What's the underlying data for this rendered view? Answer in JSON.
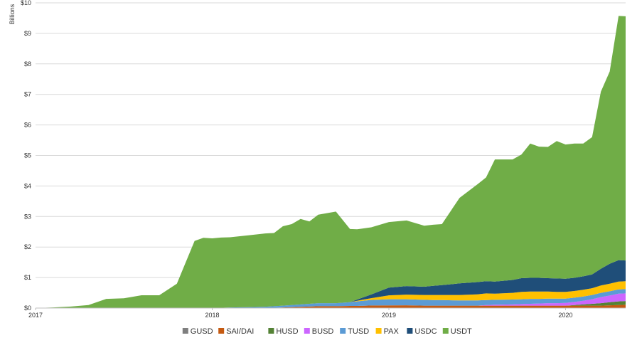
{
  "chart_data": {
    "type": "area",
    "stacked": true,
    "ylabel": "Billions",
    "ylim": [
      0,
      10
    ],
    "y_ticks": [
      "$0",
      "$1",
      "$2",
      "$3",
      "$4",
      "$5",
      "$6",
      "$7",
      "$8",
      "$9",
      "$10"
    ],
    "x_ticks": [
      "2017",
      "2018",
      "2019",
      "2020"
    ],
    "grid": "horizontal",
    "legend_position": "bottom",
    "x": [
      2017.0,
      2017.1,
      2017.2,
      2017.3,
      2017.4,
      2017.5,
      2017.6,
      2017.7,
      2017.8,
      2017.9,
      2017.95,
      2018.0,
      2018.05,
      2018.1,
      2018.2,
      2018.3,
      2018.35,
      2018.4,
      2018.45,
      2018.5,
      2018.55,
      2018.6,
      2018.7,
      2018.78,
      2018.82,
      2018.9,
      2019.0,
      2019.1,
      2019.2,
      2019.25,
      2019.3,
      2019.4,
      2019.5,
      2019.55,
      2019.6,
      2019.7,
      2019.75,
      2019.8,
      2019.85,
      2019.9,
      2019.95,
      2020.0,
      2020.05,
      2020.1,
      2020.15,
      2020.2,
      2020.25,
      2020.3,
      2020.34
    ],
    "series": [
      {
        "name": "GUSD",
        "color": "#7f7f7f",
        "values": [
          0,
          0,
          0,
          0,
          0,
          0,
          0,
          0,
          0,
          0,
          0,
          0,
          0,
          0,
          0,
          0,
          0,
          0,
          0,
          0,
          0,
          0,
          0,
          0,
          0,
          0.005,
          0.008,
          0.01,
          0.01,
          0.01,
          0.01,
          0.01,
          0.01,
          0.01,
          0.01,
          0.01,
          0.01,
          0.01,
          0.01,
          0.01,
          0.01,
          0.01,
          0.01,
          0.01,
          0.01,
          0.01,
          0.01,
          0.01,
          0.01
        ]
      },
      {
        "name": "SAI/DAI",
        "color": "#c55a11",
        "values": [
          0,
          0,
          0,
          0,
          0,
          0,
          0,
          0,
          0,
          0,
          0,
          0,
          0,
          0,
          0,
          0.005,
          0.01,
          0.02,
          0.03,
          0.04,
          0.05,
          0.06,
          0.06,
          0.07,
          0.07,
          0.08,
          0.08,
          0.08,
          0.07,
          0.07,
          0.07,
          0.07,
          0.07,
          0.07,
          0.07,
          0.07,
          0.07,
          0.07,
          0.07,
          0.07,
          0.07,
          0.07,
          0.07,
          0.07,
          0.07,
          0.07,
          0.08,
          0.09,
          0.1
        ]
      },
      {
        "name": "HUSD",
        "color": "#548235",
        "values": [
          0,
          0,
          0,
          0,
          0,
          0,
          0,
          0,
          0,
          0,
          0,
          0,
          0,
          0,
          0,
          0,
          0,
          0,
          0,
          0,
          0,
          0,
          0,
          0,
          0,
          0,
          0,
          0,
          0,
          0,
          0,
          0,
          0,
          0,
          0,
          0,
          0,
          0,
          0,
          0,
          0,
          0,
          0.02,
          0.04,
          0.06,
          0.08,
          0.1,
          0.12,
          0.12
        ]
      },
      {
        "name": "BUSD",
        "color": "#cc66ff",
        "values": [
          0,
          0,
          0,
          0,
          0,
          0,
          0,
          0,
          0,
          0,
          0,
          0,
          0,
          0,
          0,
          0,
          0,
          0,
          0,
          0,
          0,
          0,
          0,
          0,
          0,
          0,
          0,
          0,
          0,
          0,
          0,
          0,
          0,
          0.02,
          0.03,
          0.04,
          0.05,
          0.06,
          0.07,
          0.08,
          0.08,
          0.09,
          0.1,
          0.12,
          0.15,
          0.2,
          0.22,
          0.25,
          0.25
        ]
      },
      {
        "name": "TUSD",
        "color": "#5b9bd5",
        "values": [
          0,
          0,
          0,
          0,
          0,
          0,
          0,
          0,
          0,
          0,
          0,
          0.005,
          0.01,
          0.02,
          0.03,
          0.04,
          0.05,
          0.06,
          0.07,
          0.08,
          0.09,
          0.1,
          0.1,
          0.12,
          0.15,
          0.18,
          0.2,
          0.2,
          0.19,
          0.18,
          0.18,
          0.17,
          0.17,
          0.16,
          0.16,
          0.16,
          0.16,
          0.16,
          0.15,
          0.15,
          0.15,
          0.14,
          0.14,
          0.14,
          0.14,
          0.14,
          0.14,
          0.14,
          0.14
        ]
      },
      {
        "name": "PAX",
        "color": "#ffc000",
        "values": [
          0,
          0,
          0,
          0,
          0,
          0,
          0,
          0,
          0,
          0,
          0,
          0,
          0,
          0,
          0,
          0,
          0,
          0,
          0,
          0,
          0,
          0,
          0,
          0,
          0.02,
          0.06,
          0.13,
          0.15,
          0.16,
          0.17,
          0.17,
          0.18,
          0.2,
          0.22,
          0.2,
          0.22,
          0.24,
          0.24,
          0.24,
          0.23,
          0.22,
          0.22,
          0.22,
          0.22,
          0.22,
          0.24,
          0.25,
          0.26,
          0.26
        ]
      },
      {
        "name": "USDC",
        "color": "#1f4e79",
        "values": [
          0,
          0,
          0,
          0,
          0,
          0,
          0,
          0,
          0,
          0,
          0,
          0,
          0,
          0,
          0,
          0,
          0,
          0,
          0,
          0,
          0,
          0,
          0,
          0,
          0.04,
          0.12,
          0.25,
          0.28,
          0.27,
          0.3,
          0.32,
          0.38,
          0.4,
          0.4,
          0.4,
          0.42,
          0.45,
          0.45,
          0.45,
          0.44,
          0.44,
          0.43,
          0.43,
          0.44,
          0.45,
          0.55,
          0.65,
          0.7,
          0.68
        ]
      },
      {
        "name": "USDT",
        "color": "#70ad47",
        "values": [
          0,
          0.02,
          0.05,
          0.1,
          0.3,
          0.32,
          0.42,
          0.42,
          0.8,
          2.2,
          2.3,
          2.28,
          2.3,
          2.3,
          2.35,
          2.4,
          2.4,
          2.6,
          2.65,
          2.8,
          2.7,
          2.9,
          3.0,
          2.4,
          2.3,
          2.2,
          2.15,
          2.15,
          2.0,
          2.0,
          2.0,
          2.8,
          3.2,
          3.4,
          4.0,
          3.95,
          4.05,
          4.4,
          4.3,
          4.3,
          4.5,
          4.4,
          4.4,
          4.35,
          4.5,
          5.8,
          6.3,
          8.0,
          8.0
        ]
      }
    ]
  }
}
